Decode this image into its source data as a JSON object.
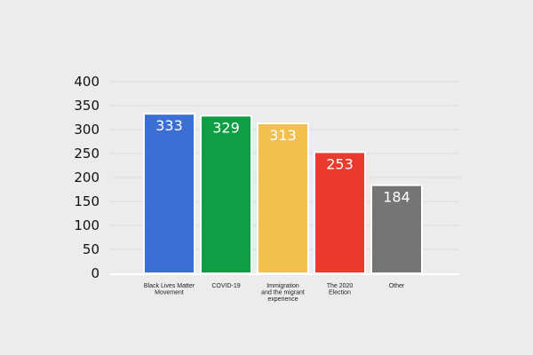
{
  "chart_data": {
    "type": "bar",
    "categories": [
      [
        "Black Lives Matter",
        "Movement"
      ],
      [
        "COVID-19"
      ],
      [
        "Immigration",
        "and the migrant",
        "experience"
      ],
      [
        "The 2020",
        "Election"
      ],
      [
        "Other"
      ]
    ],
    "values": [
      333,
      329,
      313,
      253,
      184
    ],
    "data_labels": [
      "333",
      "329",
      "313",
      "253",
      "184"
    ],
    "colors": [
      "#3b6fd4",
      "#0f9d46",
      "#f2c04f",
      "#eb3b2e",
      "#757575"
    ],
    "ylim": [
      0,
      400
    ],
    "yticks": [
      0,
      50,
      100,
      150,
      200,
      250,
      300,
      350,
      400
    ],
    "ytick_labels": [
      "0",
      "50",
      "100",
      "150",
      "200",
      "250",
      "300",
      "350",
      "400"
    ],
    "grid": true,
    "title": "",
    "xlabel": "",
    "ylabel": ""
  }
}
